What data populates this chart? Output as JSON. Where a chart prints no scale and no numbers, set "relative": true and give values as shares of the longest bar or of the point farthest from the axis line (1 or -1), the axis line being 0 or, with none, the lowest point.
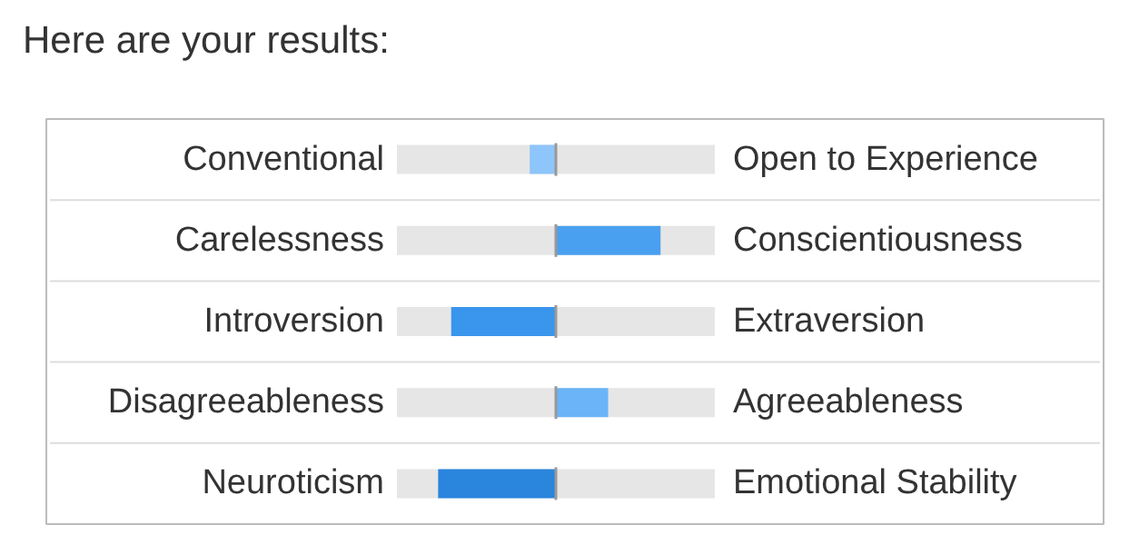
{
  "chart_data": {
    "type": "bar",
    "orientation": "horizontal",
    "relative": true,
    "title": "Here are your results:",
    "categories": [
      "Conventional",
      "Carelessness",
      "Introversion",
      "Disagreeableness",
      "Neuroticism"
    ],
    "annotations": [
      "Open to Experience",
      "Conscientiousness",
      "Extraversion",
      "Agreeableness",
      "Emotional Stability"
    ],
    "values": [
      -0.222,
      0.889,
      -0.889,
      0.444,
      -1
    ],
    "colors": [
      "#8ec5fb",
      "#4aa0f0",
      "#3a95ec",
      "#6ab4f7",
      "#2a85dd"
    ],
    "ref_lines": [
      {
        "axis": "x",
        "value": 0,
        "color": "#999999"
      }
    ],
    "grid": false
  }
}
